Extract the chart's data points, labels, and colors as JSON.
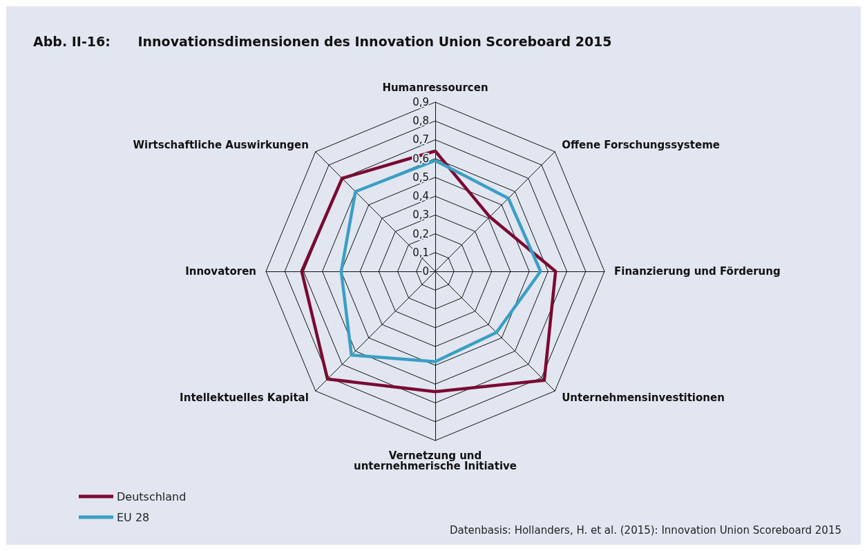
{
  "chart_data": {
    "type": "radar",
    "title": "Abb. II-16:      Innovationsdimensionen des Innovation Union Scoreboard 2015",
    "categories": [
      "Humanressourcen",
      "Offene Forschungssysteme",
      "Finanzierung und Förderung",
      "Unternehmensinvestitionen",
      "Vernetzung und\nunternehmerische Initiative",
      "Intellektuelles Kapital",
      "Innovatoren",
      "Wirtschaftliche Auswirkungen"
    ],
    "series": [
      {
        "name": "Deutschland",
        "color": "#7a0a32",
        "values": [
          0.64,
          0.41,
          0.64,
          0.82,
          0.64,
          0.81,
          0.71,
          0.7
        ]
      },
      {
        "name": "EU 28",
        "color": "#3a9fc4",
        "values": [
          0.59,
          0.55,
          0.56,
          0.46,
          0.48,
          0.63,
          0.5,
          0.6
        ]
      }
    ],
    "ylim": [
      0,
      0.9
    ],
    "yticks": [
      0,
      {
        "value": 0.1,
        "label": "0,1"
      },
      {
        "value": 0.2,
        "label": "0,2"
      },
      {
        "value": 0.3,
        "label": "0,3"
      },
      {
        "value": 0.4,
        "label": "0,4"
      },
      {
        "value": 0.5,
        "label": "0,5"
      },
      {
        "value": 0.6,
        "label": "0,6"
      },
      {
        "value": 0.7,
        "label": "0,7"
      },
      {
        "value": 0.8,
        "label": "0,8"
      },
      {
        "value": 0.9,
        "label": "0,9"
      }
    ],
    "legend": "bottom left",
    "line_style": "solid",
    "marker": "none",
    "annotations": [
      "Datenbasis: Hollanders, H. et al. (2015): Innovation Union Scoreboard 2015"
    ]
  }
}
